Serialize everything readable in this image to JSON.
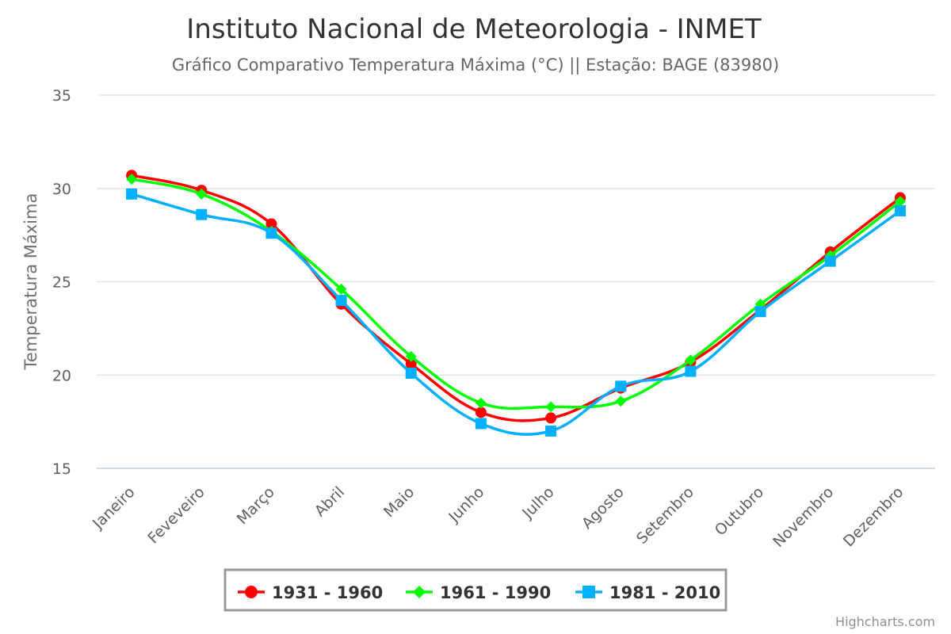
{
  "chart_data": {
    "type": "line",
    "title": "Instituto Nacional de Meteorologia - INMET",
    "subtitle": "Gráfico Comparativo Temperatura Máxima (°C) || Estação: BAGE (83980)",
    "xlabel": "",
    "ylabel": "Temperatura Máxima",
    "ylim": [
      15,
      35
    ],
    "yticks": [
      "15",
      "20",
      "25",
      "30",
      "35"
    ],
    "grid": true,
    "legend_position": "bottom-center",
    "categories": [
      "Janeiro",
      "Feveveiro",
      "Março",
      "Abril",
      "Maio",
      "Junho",
      "Julho",
      "Agosto",
      "Setembro",
      "Outubro",
      "Novembro",
      "Dezembro"
    ],
    "series": [
      {
        "name": "1931 - 1960",
        "color": "#ff0000",
        "marker": "circle",
        "values": [
          30.7,
          29.9,
          28.1,
          23.8,
          20.6,
          18.0,
          17.7,
          19.3,
          20.7,
          23.5,
          26.6,
          29.5
        ]
      },
      {
        "name": "1961 - 1990",
        "color": "#00ff00",
        "marker": "diamond",
        "values": [
          30.5,
          29.7,
          27.7,
          24.6,
          21.0,
          18.5,
          18.3,
          18.6,
          20.8,
          23.8,
          26.4,
          29.3
        ]
      },
      {
        "name": "1981 - 2010",
        "color": "#00b0ff",
        "marker": "square",
        "values": [
          29.7,
          28.6,
          27.6,
          24.0,
          20.1,
          17.4,
          17.0,
          19.4,
          20.2,
          23.4,
          26.1,
          28.8
        ]
      }
    ]
  },
  "credits": "Highcharts.com"
}
